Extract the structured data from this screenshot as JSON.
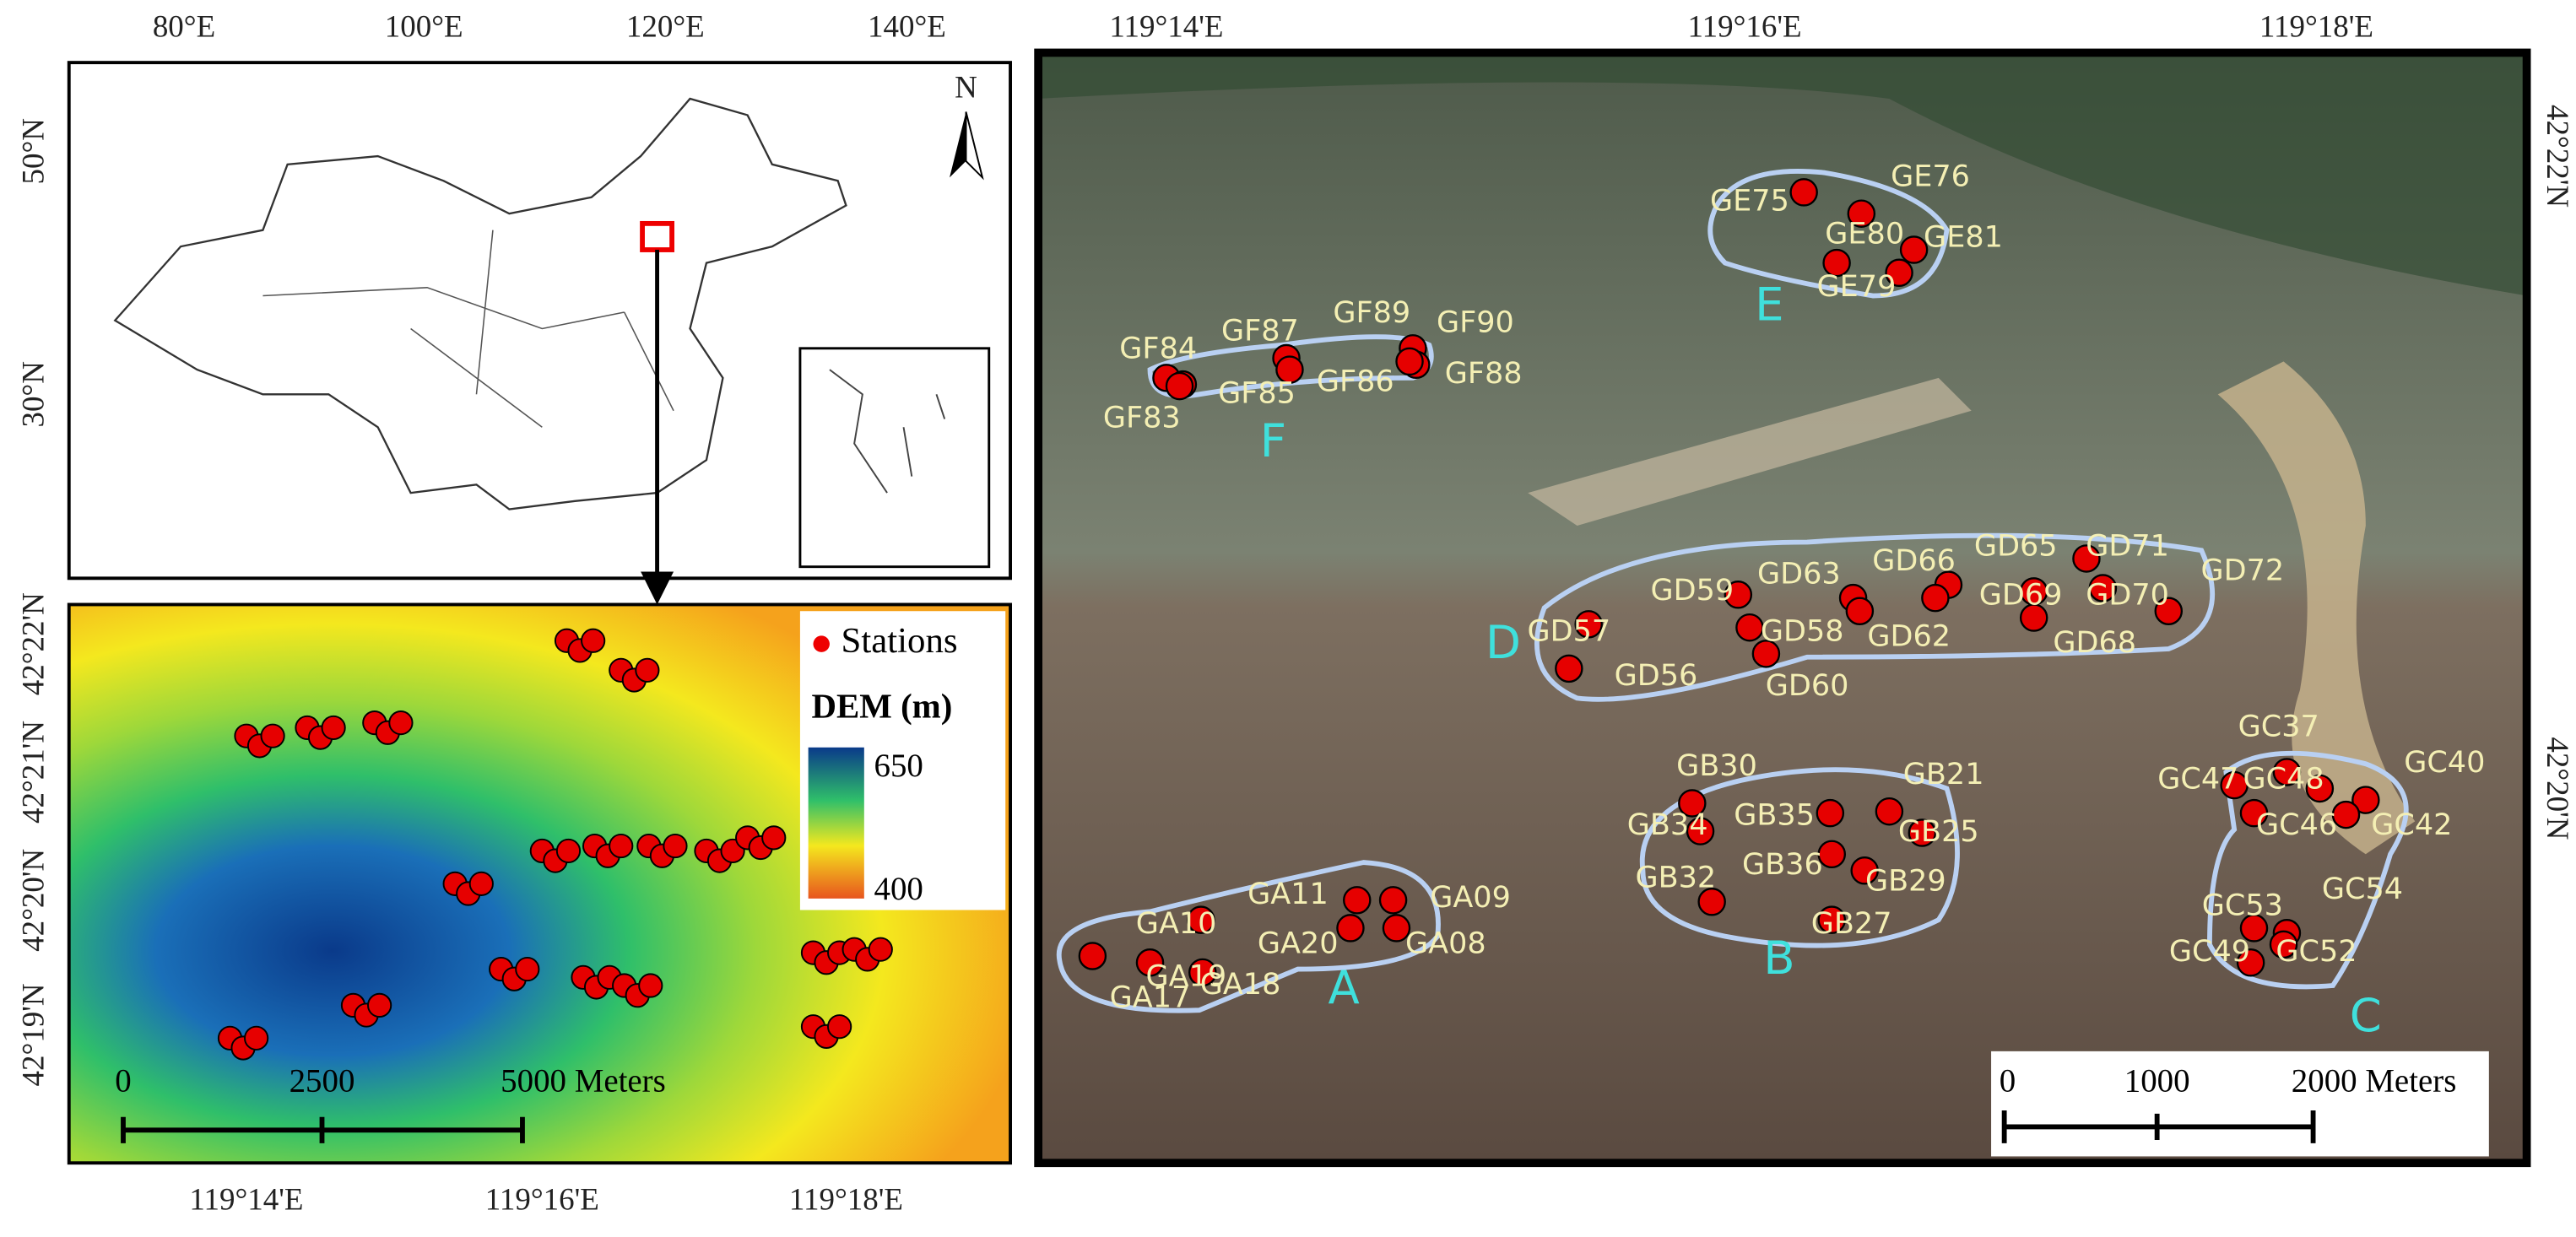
{
  "overview_map": {
    "lon_labels": [
      "80°E",
      "100°E",
      "120°E",
      "140°E"
    ],
    "lat_labels": [
      "50°N",
      "30°N"
    ],
    "north": "N"
  },
  "dem_map": {
    "lat_labels": [
      "42°22'N",
      "42°21'N",
      "42°20'N",
      "42°19'N"
    ],
    "lon_labels": [
      "119°14'E",
      "119°16'E",
      "119°18'E"
    ],
    "legend": {
      "stations": "Stations",
      "dem_title": "DEM (m)",
      "dem_max": "650",
      "dem_min": "400"
    },
    "scale": [
      "0",
      "2500",
      "5000 Meters"
    ]
  },
  "image_map": {
    "lon_labels": [
      "119°14'E",
      "119°16'E",
      "119°18'E"
    ],
    "lat_labels": [
      "42°22'N",
      "42°20'N"
    ],
    "zones": [
      "A",
      "B",
      "C",
      "D",
      "E",
      "F"
    ],
    "stations": [
      "GA10",
      "GA11",
      "GA09",
      "GA19",
      "GA20",
      "GA08",
      "GA17",
      "GA18",
      "GB30",
      "GB21",
      "GB34",
      "GB35",
      "GB25",
      "GB36",
      "GB32",
      "GB29",
      "GB27",
      "GC37",
      "GC40",
      "GC47",
      "GC48",
      "GC46",
      "GC42",
      "GC53",
      "GC54",
      "GC49",
      "GC52",
      "GD59",
      "GD63",
      "GD66",
      "GD65",
      "GD71",
      "GD72",
      "GD69",
      "GD70",
      "GD57",
      "GD58",
      "GD62",
      "GD68",
      "GD56",
      "GD60",
      "GE75",
      "GE76",
      "GE80",
      "GE81",
      "GE79",
      "GF84",
      "GF87",
      "GF89",
      "GF90",
      "GF85",
      "GF86",
      "GF88",
      "GF83"
    ],
    "scale": [
      "0",
      "1000",
      "2000 Meters"
    ]
  }
}
